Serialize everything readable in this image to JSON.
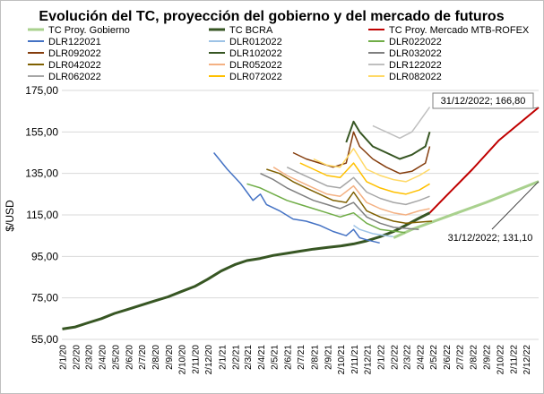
{
  "chart_data": {
    "type": "line",
    "title": "Evolución del TC, proyección del gobierno y del mercado de futuros",
    "ylabel": "$/USD",
    "xlabel": "",
    "ylim": [
      55,
      175
    ],
    "yticks": [
      "55,00",
      "75,00",
      "95,00",
      "115,00",
      "135,00",
      "155,00",
      "175,00"
    ],
    "ytick_values": [
      55,
      75,
      95,
      115,
      135,
      155,
      175
    ],
    "xlim": [
      "2020-01-01",
      "2022-12-31"
    ],
    "xticks": [
      "2/1/20",
      "2/2/20",
      "2/3/20",
      "2/4/20",
      "2/5/20",
      "2/6/20",
      "2/7/20",
      "2/8/20",
      "2/9/20",
      "2/10/20",
      "2/11/20",
      "2/12/20",
      "2/1/21",
      "2/2/21",
      "2/3/21",
      "2/4/21",
      "2/5/21",
      "2/6/21",
      "2/7/21",
      "2/8/21",
      "2/9/21",
      "2/10/21",
      "2/11/21",
      "2/12/21",
      "2/1/22",
      "2/2/22",
      "2/3/22",
      "2/4/22",
      "2/5/22",
      "2/6/22",
      "2/7/22",
      "2/8/22",
      "2/9/22",
      "2/10/22",
      "2/11/22",
      "2/12/22"
    ],
    "xtick_dates": [
      "2020-01-02",
      "2020-02-02",
      "2020-03-02",
      "2020-04-02",
      "2020-05-02",
      "2020-06-02",
      "2020-07-02",
      "2020-08-02",
      "2020-09-02",
      "2020-10-02",
      "2020-11-02",
      "2020-12-02",
      "2021-01-02",
      "2021-02-02",
      "2021-03-02",
      "2021-04-02",
      "2021-05-02",
      "2021-06-02",
      "2021-07-02",
      "2021-08-02",
      "2021-09-02",
      "2021-10-02",
      "2021-11-02",
      "2021-12-02",
      "2022-01-02",
      "2022-02-02",
      "2022-03-02",
      "2022-04-02",
      "2022-05-02",
      "2022-06-02",
      "2022-07-02",
      "2022-08-02",
      "2022-09-02",
      "2022-10-02",
      "2022-11-02",
      "2022-12-02"
    ],
    "grid": "horizontal",
    "legend_position": "top",
    "series": [
      {
        "name": "TC Proy. Gobierno",
        "color": "#a9d18e",
        "dash": false,
        "width": 3,
        "points": [
          [
            "2022-02-01",
            104
          ],
          [
            "2022-03-15",
            108
          ],
          [
            "2022-06-01",
            114
          ],
          [
            "2022-09-01",
            121
          ],
          [
            "2022-12-31",
            131.1
          ]
        ]
      },
      {
        "name": "TC BCRA",
        "color": "#375623",
        "dash": false,
        "width": 3,
        "points": [
          [
            "2020-01-02",
            60
          ],
          [
            "2020-02-01",
            61
          ],
          [
            "2020-03-01",
            63
          ],
          [
            "2020-04-01",
            65
          ],
          [
            "2020-05-01",
            67.5
          ],
          [
            "2020-06-01",
            69.5
          ],
          [
            "2020-07-01",
            71.5
          ],
          [
            "2020-08-01",
            73.5
          ],
          [
            "2020-09-01",
            75.5
          ],
          [
            "2020-10-01",
            78
          ],
          [
            "2020-11-01",
            80.5
          ],
          [
            "2020-12-01",
            84
          ],
          [
            "2021-01-01",
            88
          ],
          [
            "2021-02-01",
            91
          ],
          [
            "2021-03-01",
            93
          ],
          [
            "2021-04-01",
            94
          ],
          [
            "2021-05-01",
            95.5
          ],
          [
            "2021-06-01",
            96.5
          ],
          [
            "2021-07-01",
            97.5
          ],
          [
            "2021-08-01",
            98.5
          ],
          [
            "2021-09-01",
            99.3
          ],
          [
            "2021-10-01",
            100
          ],
          [
            "2021-11-01",
            101
          ],
          [
            "2021-12-01",
            102.5
          ],
          [
            "2022-01-01",
            104.5
          ],
          [
            "2022-02-01",
            107
          ],
          [
            "2022-03-01",
            110
          ],
          [
            "2022-04-01",
            113.5
          ],
          [
            "2022-04-25",
            116
          ]
        ]
      },
      {
        "name": "TC Proy. Mercado MTB-ROFEX",
        "color": "#c00000",
        "dash": false,
        "width": 2,
        "points": [
          [
            "2022-04-25",
            116
          ],
          [
            "2022-06-01",
            124
          ],
          [
            "2022-08-01",
            137
          ],
          [
            "2022-10-01",
            151
          ],
          [
            "2022-12-31",
            166.8
          ]
        ]
      },
      {
        "name": "DLR122021",
        "color": "#4472c4",
        "dash": false,
        "width": 1.5,
        "points": [
          [
            "2020-12-15",
            145
          ],
          [
            "2021-01-15",
            137
          ],
          [
            "2021-02-15",
            130
          ],
          [
            "2021-03-01",
            126
          ],
          [
            "2021-03-15",
            122
          ],
          [
            "2021-04-01",
            125
          ],
          [
            "2021-04-15",
            120
          ],
          [
            "2021-05-15",
            117
          ],
          [
            "2021-06-15",
            113
          ],
          [
            "2021-07-15",
            112
          ],
          [
            "2021-08-15",
            110
          ],
          [
            "2021-09-15",
            107
          ],
          [
            "2021-10-15",
            105
          ],
          [
            "2021-11-01",
            108
          ],
          [
            "2021-11-15",
            104
          ],
          [
            "2021-12-01",
            103
          ],
          [
            "2021-12-31",
            101.5
          ]
        ]
      },
      {
        "name": "DLR012022",
        "color": "#9dc3e6",
        "dash": false,
        "width": 1.5,
        "points": [
          [
            "2021-11-01",
            110
          ],
          [
            "2021-11-15",
            108
          ],
          [
            "2021-12-15",
            106
          ],
          [
            "2022-01-15",
            105
          ],
          [
            "2022-01-31",
            104.5
          ]
        ]
      },
      {
        "name": "DLR022022",
        "color": "#70ad47",
        "dash": false,
        "width": 1.5,
        "points": [
          [
            "2021-03-01",
            130
          ],
          [
            "2021-04-01",
            128
          ],
          [
            "2021-05-01",
            125
          ],
          [
            "2021-06-01",
            122
          ],
          [
            "2021-07-01",
            120
          ],
          [
            "2021-08-01",
            118
          ],
          [
            "2021-09-01",
            116
          ],
          [
            "2021-10-01",
            114
          ],
          [
            "2021-11-01",
            116
          ],
          [
            "2021-12-01",
            111
          ],
          [
            "2022-01-01",
            108
          ],
          [
            "2022-02-28",
            106.5
          ]
        ]
      },
      {
        "name": "DLR092022",
        "color": "#843c0c",
        "dash": false,
        "width": 1.5,
        "points": [
          [
            "2021-06-15",
            145
          ],
          [
            "2021-07-15",
            142
          ],
          [
            "2021-08-15",
            140
          ],
          [
            "2021-09-15",
            138
          ],
          [
            "2021-10-15",
            140
          ],
          [
            "2021-11-01",
            155
          ],
          [
            "2021-11-15",
            148
          ],
          [
            "2021-12-15",
            142
          ],
          [
            "2022-01-15",
            138
          ],
          [
            "2022-02-15",
            135
          ],
          [
            "2022-03-15",
            136
          ],
          [
            "2022-04-15",
            140
          ],
          [
            "2022-04-25",
            148
          ]
        ]
      },
      {
        "name": "DLR102022",
        "color": "#375623",
        "dash": false,
        "width": 2,
        "points": [
          [
            "2021-10-15",
            150
          ],
          [
            "2021-11-01",
            160
          ],
          [
            "2021-11-15",
            155
          ],
          [
            "2021-12-15",
            148
          ],
          [
            "2022-01-15",
            145
          ],
          [
            "2022-02-15",
            142
          ],
          [
            "2022-03-15",
            144
          ],
          [
            "2022-04-15",
            148
          ],
          [
            "2022-04-25",
            155
          ]
        ]
      },
      {
        "name": "DLR032022",
        "color": "#7f7f7f",
        "dash": false,
        "width": 1.5,
        "points": [
          [
            "2021-04-01",
            135
          ],
          [
            "2021-05-01",
            132
          ],
          [
            "2021-06-01",
            128
          ],
          [
            "2021-07-01",
            125
          ],
          [
            "2021-08-01",
            122
          ],
          [
            "2021-09-01",
            120
          ],
          [
            "2021-10-01",
            118
          ],
          [
            "2021-11-01",
            121
          ],
          [
            "2021-12-01",
            114
          ],
          [
            "2022-01-01",
            111
          ],
          [
            "2022-02-01",
            109
          ],
          [
            "2022-03-31",
            108
          ]
        ]
      },
      {
        "name": "DLR042022",
        "color": "#7f6000",
        "dash": false,
        "width": 1.5,
        "points": [
          [
            "2021-04-15",
            137
          ],
          [
            "2021-05-15",
            135
          ],
          [
            "2021-06-15",
            131
          ],
          [
            "2021-07-15",
            128
          ],
          [
            "2021-08-15",
            125
          ],
          [
            "2021-09-15",
            122
          ],
          [
            "2021-10-15",
            121
          ],
          [
            "2021-11-01",
            126
          ],
          [
            "2021-12-01",
            117
          ],
          [
            "2022-01-01",
            114
          ],
          [
            "2022-02-01",
            112
          ],
          [
            "2022-03-01",
            111
          ],
          [
            "2022-04-30",
            112
          ]
        ]
      },
      {
        "name": "DLR052022",
        "color": "#f4b183",
        "dash": false,
        "width": 1.5,
        "points": [
          [
            "2021-05-01",
            138
          ],
          [
            "2021-06-01",
            134
          ],
          [
            "2021-07-01",
            131
          ],
          [
            "2021-08-01",
            128
          ],
          [
            "2021-09-01",
            125
          ],
          [
            "2021-10-01",
            124
          ],
          [
            "2021-11-01",
            129
          ],
          [
            "2021-12-01",
            121
          ],
          [
            "2022-01-01",
            118
          ],
          [
            "2022-02-01",
            116
          ],
          [
            "2022-03-01",
            115
          ],
          [
            "2022-04-01",
            117
          ],
          [
            "2022-04-25",
            118
          ]
        ]
      },
      {
        "name": "DLR122022",
        "color": "#bfbfbf",
        "dash": false,
        "width": 1.5,
        "points": [
          [
            "2021-12-15",
            158
          ],
          [
            "2022-01-15",
            155
          ],
          [
            "2022-02-15",
            152
          ],
          [
            "2022-03-15",
            155
          ],
          [
            "2022-04-01",
            160
          ],
          [
            "2022-04-25",
            167
          ]
        ]
      },
      {
        "name": "DLR062022",
        "color": "#a6a6a6",
        "dash": false,
        "width": 1.5,
        "points": [
          [
            "2021-06-01",
            138
          ],
          [
            "2021-07-01",
            135
          ],
          [
            "2021-08-01",
            132
          ],
          [
            "2021-09-01",
            129
          ],
          [
            "2021-10-01",
            128
          ],
          [
            "2021-11-01",
            133
          ],
          [
            "2021-12-01",
            126
          ],
          [
            "2022-01-01",
            123
          ],
          [
            "2022-02-01",
            121
          ],
          [
            "2022-03-01",
            120
          ],
          [
            "2022-04-01",
            122
          ],
          [
            "2022-04-25",
            124
          ]
        ]
      },
      {
        "name": "DLR072022",
        "color": "#ffc000",
        "dash": false,
        "width": 1.5,
        "points": [
          [
            "2021-07-01",
            140
          ],
          [
            "2021-08-01",
            137
          ],
          [
            "2021-09-01",
            134
          ],
          [
            "2021-10-01",
            133
          ],
          [
            "2021-11-01",
            140
          ],
          [
            "2021-12-01",
            131
          ],
          [
            "2022-01-01",
            128
          ],
          [
            "2022-02-01",
            126
          ],
          [
            "2022-03-01",
            125
          ],
          [
            "2022-04-01",
            127
          ],
          [
            "2022-04-25",
            130
          ]
        ]
      },
      {
        "name": "DLR082022",
        "color": "#ffd966",
        "dash": false,
        "width": 1.5,
        "points": [
          [
            "2021-08-01",
            142
          ],
          [
            "2021-09-01",
            139
          ],
          [
            "2021-10-01",
            138
          ],
          [
            "2021-11-01",
            147
          ],
          [
            "2021-12-01",
            137
          ],
          [
            "2022-01-01",
            134
          ],
          [
            "2022-02-01",
            132
          ],
          [
            "2022-03-01",
            131
          ],
          [
            "2022-04-01",
            134
          ],
          [
            "2022-04-25",
            137
          ]
        ]
      }
    ],
    "annotations": [
      {
        "text": "31/12/2022; 166,80",
        "date": "2022-12-31",
        "value": 166.8,
        "boxed": true
      },
      {
        "text": "31/12/2022; 131,10",
        "date": "2022-12-31",
        "value": 131.1,
        "boxed": false
      }
    ]
  }
}
